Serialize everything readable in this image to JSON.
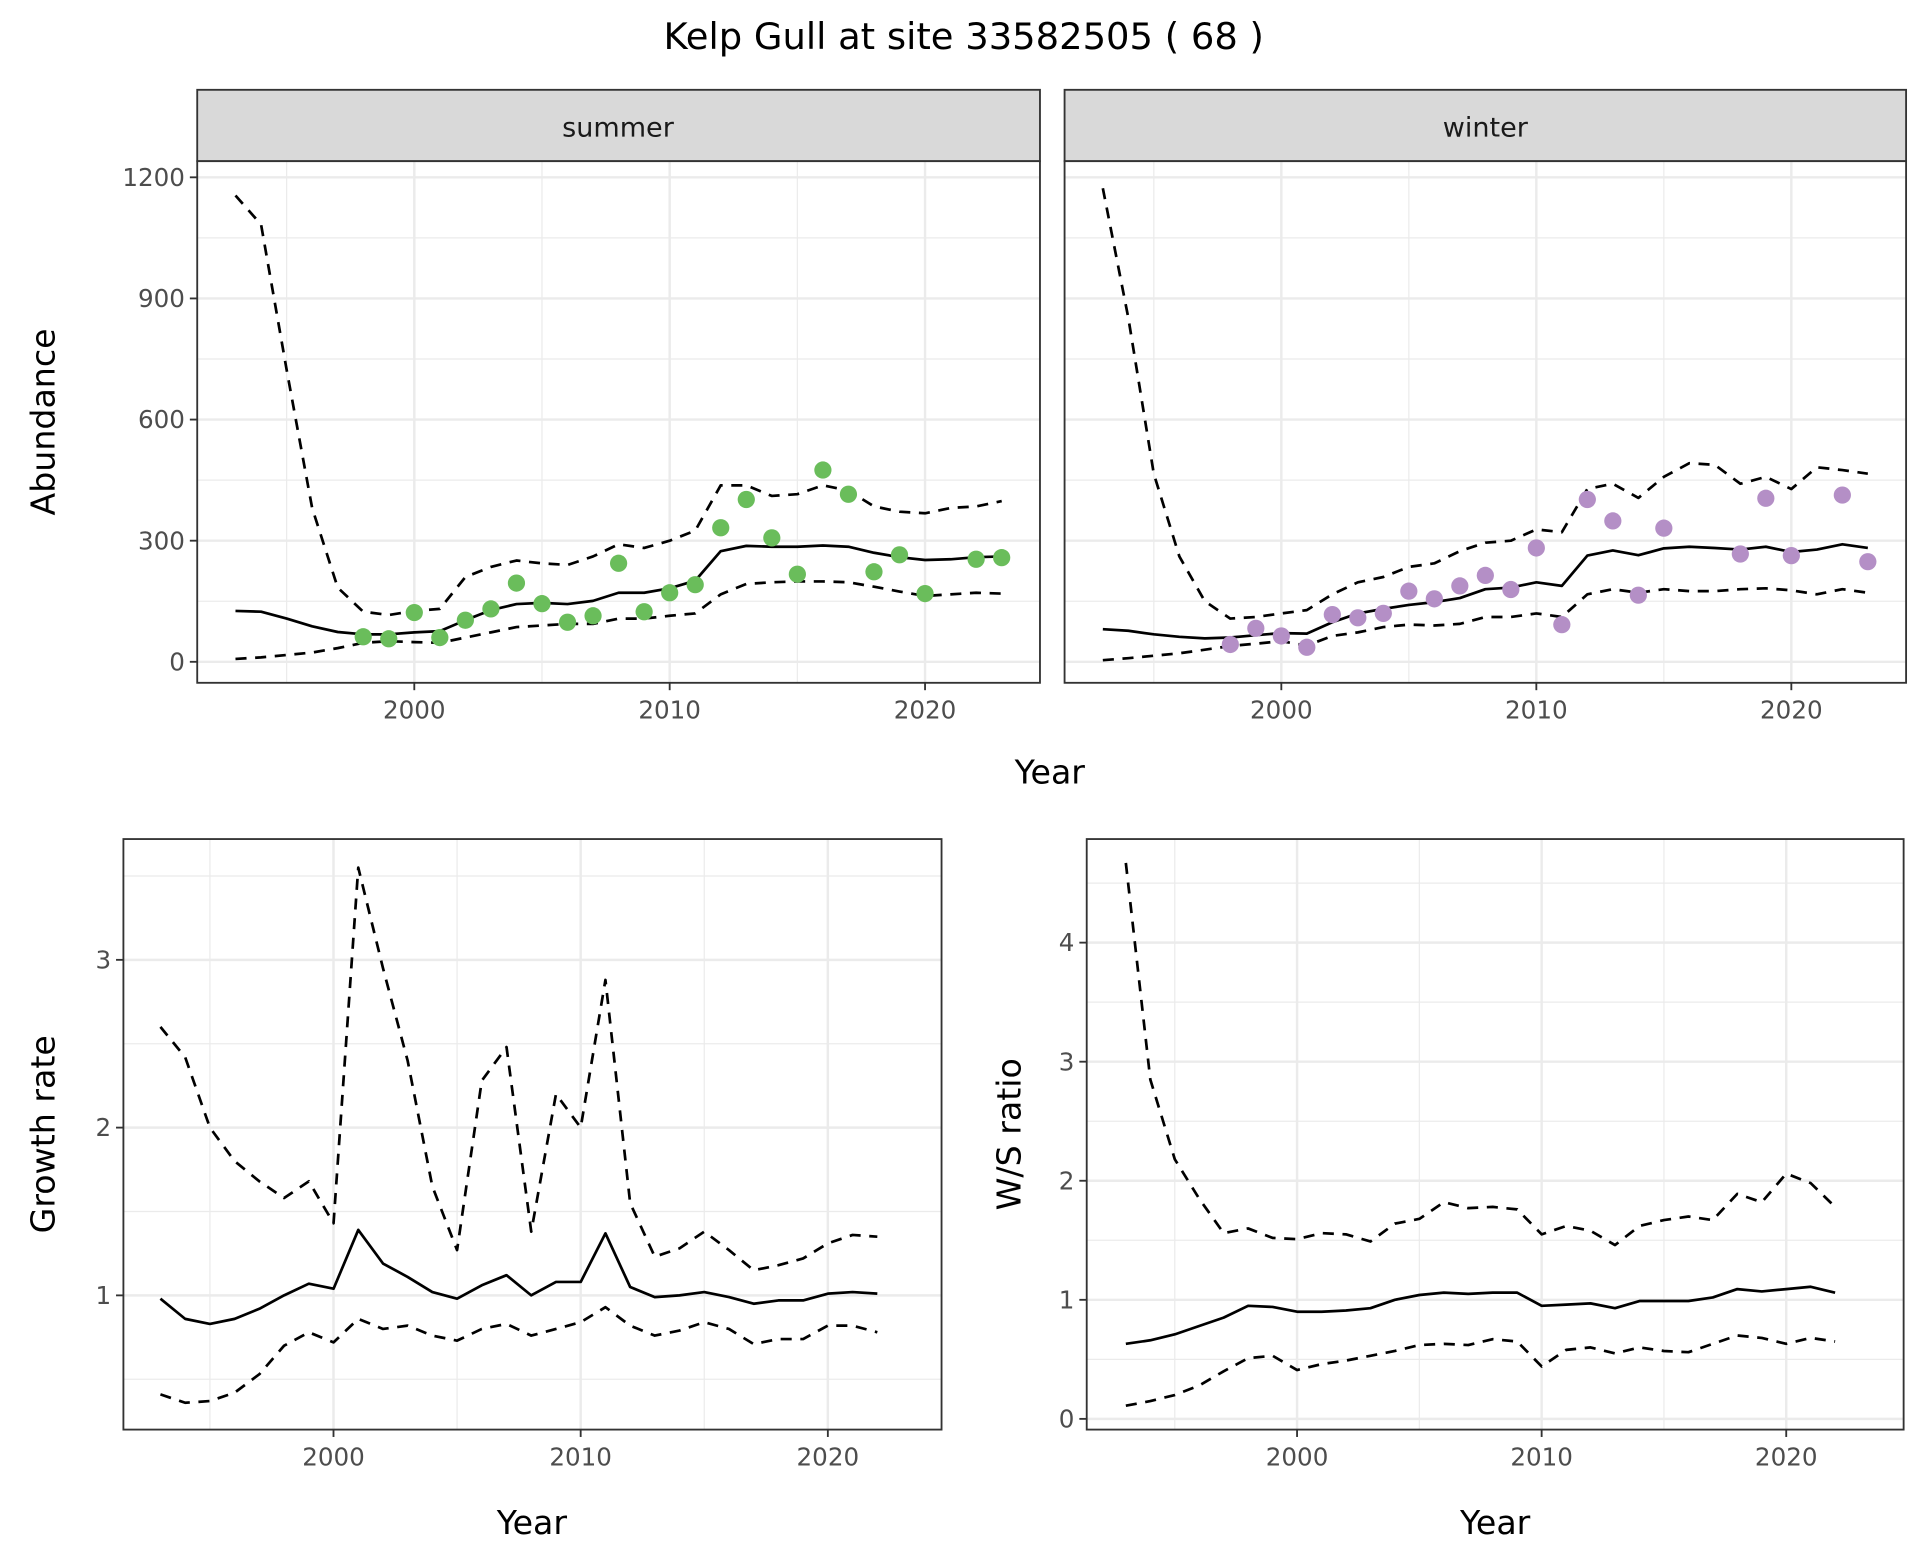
{
  "chart_data": [
    {
      "type": "line",
      "title": "Kelp Gull at site 33582505 ( 68 )",
      "xlabel": "Year",
      "ylabel": "Abundance",
      "ylim": [
        -52,
        1240
      ],
      "xlim": [
        1991.5,
        2024.5
      ],
      "yticks": [
        "0",
        "300",
        "600",
        "900",
        "1200"
      ],
      "ytick_values": [
        0,
        300,
        600,
        900,
        1200
      ],
      "xticks": [
        "2000",
        "2010",
        "2020"
      ],
      "xtick_values": [
        2000,
        2010,
        2020
      ],
      "grid": true,
      "facets": [
        {
          "label": "summer",
          "point_color": "#6abd5b",
          "x": [
            1993,
            1994,
            1995,
            1996,
            1997,
            1998,
            1999,
            2000,
            2001,
            2002,
            2003,
            2004,
            2005,
            2006,
            2007,
            2008,
            2009,
            2010,
            2011,
            2012,
            2013,
            2014,
            2015,
            2016,
            2017,
            2018,
            2019,
            2020,
            2021,
            2022,
            2023
          ],
          "series": [
            {
              "name": "mean",
              "style": "solid",
              "values": [
                126,
                124,
                107,
                88,
                74,
                68,
                68,
                73,
                76,
                103,
                128,
                143,
                146,
                143,
                151,
                171,
                171,
                182,
                201,
                274,
                287,
                285,
                285,
                288,
                285,
                270,
                259,
                252,
                254,
                259,
                261
              ]
            },
            {
              "name": "upper",
              "style": "dashed",
              "values": [
                1155,
                1083,
                723,
                381,
                184,
                124,
                116,
                126,
                131,
                210,
                235,
                251,
                244,
                240,
                261,
                291,
                282,
                300,
                325,
                437,
                437,
                411,
                415,
                437,
                424,
                385,
                372,
                368,
                381,
                385,
                398
              ]
            },
            {
              "name": "lower",
              "style": "dashed",
              "values": [
                7,
                11,
                17,
                23,
                34,
                47,
                51,
                49,
                47,
                60,
                73,
                86,
                90,
                94,
                94,
                107,
                107,
                114,
                120,
                167,
                193,
                197,
                199,
                199,
                197,
                186,
                174,
                163,
                167,
                171,
                169
              ]
            }
          ],
          "points": {
            "x": [
              1998,
              1999,
              2000,
              2001,
              2002,
              2003,
              2004,
              2005,
              2006,
              2007,
              2008,
              2009,
              2010,
              2011,
              2012,
              2013,
              2014,
              2015,
              2016,
              2017,
              2018,
              2019,
              2020,
              2022,
              2023
            ],
            "y": [
              62,
              57,
              122,
              60,
              103,
              131,
              195,
              144,
              98,
              114,
              244,
              124,
              171,
              191,
              332,
              402,
              307,
              217,
              475,
              415,
              223,
              265,
              169,
              254,
              258
            ]
          }
        },
        {
          "label": "winter",
          "point_color": "#b48fc6",
          "x": [
            1993,
            1994,
            1995,
            1996,
            1997,
            1998,
            1999,
            2000,
            2001,
            2002,
            2003,
            2004,
            2005,
            2006,
            2007,
            2008,
            2009,
            2010,
            2011,
            2012,
            2013,
            2014,
            2015,
            2016,
            2017,
            2018,
            2019,
            2020,
            2021,
            2022,
            2023
          ],
          "series": [
            {
              "name": "mean",
              "style": "solid",
              "values": [
                81,
                77,
                68,
                62,
                58,
                60,
                66,
                71,
                70,
                98,
                120,
                131,
                141,
                148,
                158,
                180,
                184,
                197,
                188,
                263,
                276,
                264,
                281,
                285,
                282,
                278,
                285,
                272,
                278,
                291,
                282
              ]
            },
            {
              "name": "upper",
              "style": "dashed",
              "values": [
                1173,
                852,
                466,
                261,
                150,
                107,
                111,
                120,
                128,
                167,
                197,
                210,
                235,
                244,
                274,
                295,
                300,
                328,
                321,
                428,
                441,
                406,
                458,
                492,
                488,
                441,
                458,
                428,
                482,
                475,
                466
              ]
            },
            {
              "name": "lower",
              "style": "dashed",
              "values": [
                4,
                9,
                15,
                21,
                30,
                39,
                45,
                51,
                40,
                64,
                73,
                86,
                92,
                90,
                94,
                111,
                111,
                120,
                111,
                167,
                180,
                171,
                180,
                175,
                175,
                180,
                182,
                177,
                167,
                180,
                171
              ]
            }
          ],
          "points": {
            "x": [
              1998,
              1999,
              2000,
              2001,
              2002,
              2003,
              2004,
              2005,
              2006,
              2007,
              2008,
              2009,
              2010,
              2011,
              2012,
              2013,
              2014,
              2015,
              2018,
              2019,
              2020,
              2022,
              2023
            ],
            "y": [
              43,
              83,
              64,
              36,
              117,
              109,
              120,
              175,
              156,
              188,
              214,
              179,
              282,
              92,
              402,
              349,
              165,
              331,
              267,
              405,
              263,
              413,
              248
            ]
          }
        }
      ]
    },
    {
      "type": "line",
      "xlabel": "Year",
      "ylabel": "Growth rate",
      "ylim": [
        0.2,
        3.72
      ],
      "xlim": [
        1991.5,
        2024.6
      ],
      "yticks": [
        "1",
        "2",
        "3"
      ],
      "ytick_values": [
        1,
        2,
        3
      ],
      "xticks": [
        "2000",
        "2010",
        "2020"
      ],
      "xtick_values": [
        2000,
        2010,
        2020
      ],
      "grid": true,
      "x": [
        1993,
        1994,
        1995,
        1996,
        1997,
        1998,
        1999,
        2000,
        2001,
        2002,
        2003,
        2004,
        2005,
        2006,
        2007,
        2008,
        2009,
        2010,
        2011,
        2012,
        2013,
        2014,
        2015,
        2016,
        2017,
        2018,
        2019,
        2020,
        2021,
        2022
      ],
      "series": [
        {
          "name": "mean",
          "style": "solid",
          "values": [
            0.98,
            0.86,
            0.83,
            0.86,
            0.92,
            1.0,
            1.07,
            1.04,
            1.39,
            1.19,
            1.11,
            1.02,
            0.98,
            1.06,
            1.12,
            1.0,
            1.08,
            1.08,
            1.37,
            1.05,
            0.99,
            1.0,
            1.02,
            0.99,
            0.95,
            0.97,
            0.97,
            1.01,
            1.02,
            1.01
          ]
        },
        {
          "name": "upper",
          "style": "dashed",
          "values": [
            2.6,
            2.42,
            2.0,
            1.8,
            1.68,
            1.58,
            1.68,
            1.43,
            3.55,
            2.95,
            2.4,
            1.65,
            1.27,
            2.28,
            2.48,
            1.38,
            2.2,
            2.0,
            2.88,
            1.55,
            1.23,
            1.28,
            1.38,
            1.27,
            1.15,
            1.18,
            1.22,
            1.31,
            1.36,
            1.35
          ]
        },
        {
          "name": "lower",
          "style": "dashed",
          "values": [
            0.41,
            0.36,
            0.37,
            0.42,
            0.53,
            0.7,
            0.78,
            0.72,
            0.86,
            0.8,
            0.82,
            0.76,
            0.73,
            0.8,
            0.83,
            0.76,
            0.8,
            0.84,
            0.93,
            0.82,
            0.76,
            0.79,
            0.84,
            0.8,
            0.71,
            0.74,
            0.74,
            0.82,
            0.82,
            0.78
          ]
        }
      ]
    },
    {
      "type": "line",
      "xlabel": "Year",
      "ylabel": "W/S ratio",
      "ylim": [
        -0.09,
        4.87
      ],
      "xlim": [
        1991.4,
        2024.8
      ],
      "yticks": [
        "0",
        "1",
        "2",
        "3",
        "4"
      ],
      "ytick_values": [
        0,
        1,
        2,
        3,
        4
      ],
      "xticks": [
        "2000",
        "2010",
        "2020"
      ],
      "xtick_values": [
        2000,
        2010,
        2020
      ],
      "grid": true,
      "x": [
        1993,
        1994,
        1995,
        1996,
        1997,
        1998,
        1999,
        2000,
        2001,
        2002,
        2003,
        2004,
        2005,
        2006,
        2007,
        2008,
        2009,
        2010,
        2011,
        2012,
        2013,
        2014,
        2015,
        2016,
        2017,
        2018,
        2019,
        2020,
        2021,
        2022
      ],
      "series": [
        {
          "name": "mean",
          "style": "solid",
          "values": [
            0.63,
            0.66,
            0.71,
            0.78,
            0.85,
            0.95,
            0.94,
            0.9,
            0.9,
            0.91,
            0.93,
            1.0,
            1.04,
            1.06,
            1.05,
            1.06,
            1.06,
            0.95,
            0.96,
            0.97,
            0.93,
            0.99,
            0.99,
            0.99,
            1.02,
            1.09,
            1.07,
            1.09,
            1.11,
            1.06
          ]
        },
        {
          "name": "upper",
          "style": "dashed",
          "values": [
            4.67,
            2.85,
            2.18,
            1.85,
            1.56,
            1.6,
            1.52,
            1.51,
            1.56,
            1.55,
            1.49,
            1.64,
            1.68,
            1.82,
            1.77,
            1.78,
            1.76,
            1.55,
            1.62,
            1.58,
            1.46,
            1.62,
            1.67,
            1.7,
            1.67,
            1.89,
            1.82,
            2.06,
            1.98,
            1.78
          ]
        },
        {
          "name": "lower",
          "style": "dashed",
          "values": [
            0.11,
            0.15,
            0.2,
            0.28,
            0.4,
            0.51,
            0.53,
            0.41,
            0.46,
            0.49,
            0.53,
            0.57,
            0.62,
            0.63,
            0.62,
            0.67,
            0.65,
            0.44,
            0.58,
            0.6,
            0.55,
            0.6,
            0.57,
            0.56,
            0.63,
            0.7,
            0.68,
            0.63,
            0.68,
            0.65
          ]
        }
      ]
    }
  ]
}
